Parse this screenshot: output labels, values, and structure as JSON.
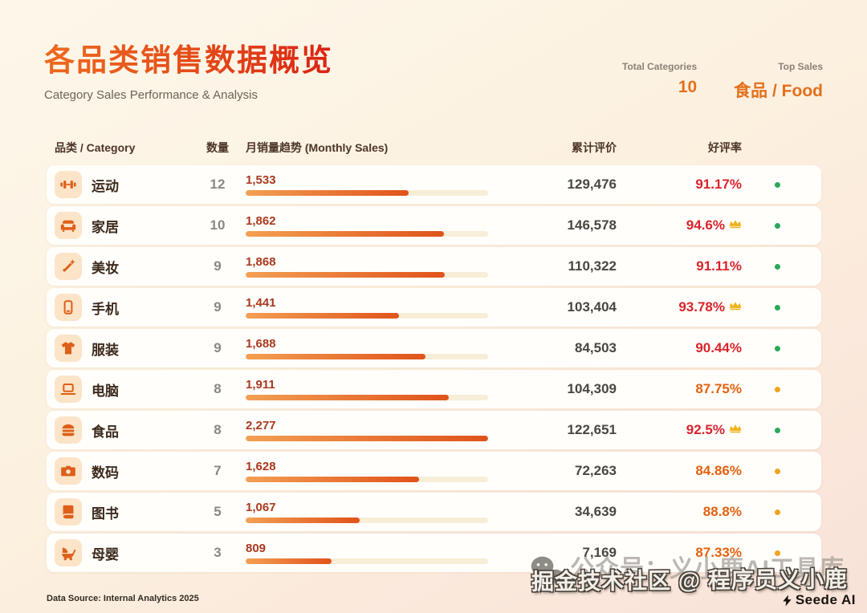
{
  "header": {
    "title": "各品类销售数据概览",
    "subtitle": "Category Sales Performance & Analysis",
    "stats": [
      {
        "label": "Total Categories",
        "value": "10"
      },
      {
        "label": "Top Sales",
        "value": "食品 / Food"
      }
    ]
  },
  "table": {
    "columns": {
      "category": "品类 / Category",
      "count": "数量",
      "trend": "月销量趋势 (Monthly Sales)",
      "reviews": "累计评价",
      "rating": "好评率"
    },
    "rows": [
      {
        "icon": "dumbbell-icon",
        "name": "运动",
        "count": "12",
        "sales": "1,533",
        "bar_pct": 67.3,
        "reviews": "129,476",
        "rating": "91.17%",
        "crown": false,
        "rating_color": "#d8232b",
        "status": "good",
        "status_color": "#2aa85a"
      },
      {
        "icon": "sofa-icon",
        "name": "家居",
        "count": "10",
        "sales": "1,862",
        "bar_pct": 81.8,
        "reviews": "146,578",
        "rating": "94.6%",
        "crown": true,
        "rating_color": "#d8232b",
        "status": "good",
        "status_color": "#2aa85a"
      },
      {
        "icon": "magic-wand-icon",
        "name": "美妆",
        "count": "9",
        "sales": "1,868",
        "bar_pct": 82.0,
        "reviews": "110,322",
        "rating": "91.11%",
        "crown": false,
        "rating_color": "#d8232b",
        "status": "good",
        "status_color": "#2aa85a"
      },
      {
        "icon": "smartphone-icon",
        "name": "手机",
        "count": "9",
        "sales": "1,441",
        "bar_pct": 63.3,
        "reviews": "103,404",
        "rating": "93.78%",
        "crown": true,
        "rating_color": "#d8232b",
        "status": "good",
        "status_color": "#2aa85a"
      },
      {
        "icon": "tshirt-icon",
        "name": "服装",
        "count": "9",
        "sales": "1,688",
        "bar_pct": 74.1,
        "reviews": "84,503",
        "rating": "90.44%",
        "crown": false,
        "rating_color": "#d8232b",
        "status": "good",
        "status_color": "#2aa85a"
      },
      {
        "icon": "laptop-icon",
        "name": "电脑",
        "count": "8",
        "sales": "1,911",
        "bar_pct": 83.9,
        "reviews": "104,309",
        "rating": "87.75%",
        "crown": false,
        "rating_color": "#e2620f",
        "status": "medium",
        "status_color": "#f2a31c"
      },
      {
        "icon": "burger-icon",
        "name": "食品",
        "count": "8",
        "sales": "2,277",
        "bar_pct": 100,
        "reviews": "122,651",
        "rating": "92.5%",
        "crown": true,
        "rating_color": "#d8232b",
        "status": "good",
        "status_color": "#2aa85a"
      },
      {
        "icon": "camera-icon",
        "name": "数码",
        "count": "7",
        "sales": "1,628",
        "bar_pct": 71.5,
        "reviews": "72,263",
        "rating": "84.86%",
        "crown": false,
        "rating_color": "#e2620f",
        "status": "medium",
        "status_color": "#f2a31c"
      },
      {
        "icon": "book-icon",
        "name": "图书",
        "count": "5",
        "sales": "1,067",
        "bar_pct": 46.9,
        "reviews": "34,639",
        "rating": "88.8%",
        "crown": false,
        "rating_color": "#e2620f",
        "status": "medium",
        "status_color": "#f2a31c"
      },
      {
        "icon": "stroller-icon",
        "name": "母婴",
        "count": "3",
        "sales": "809",
        "bar_pct": 35.5,
        "reviews": "7,169",
        "rating": "87.33%",
        "crown": false,
        "rating_color": "#e2620f",
        "status": "medium",
        "status_color": "#f2a31c"
      }
    ]
  },
  "footer": {
    "source": "Data Source: Internal Analytics 2025"
  },
  "watermark": {
    "back_text": "公众号：义小鹿AI工具库",
    "front_text": "掘金技术社区 @ 程序员义小鹿",
    "logo_text": "Seede AI"
  },
  "colors": {
    "accent_orange": "#e4701c",
    "bar_gradient_start": "#f3a053",
    "bar_gradient_end": "#e0531a",
    "rating_high": "#d8232b",
    "rating_low": "#e2620f",
    "dot_green": "#2aa85a",
    "dot_orange": "#f2a31c",
    "crown_gold": "#f0b31a"
  },
  "chart_data": {
    "type": "bar",
    "title": "各品类销售数据概览 (Category Sales Performance & Analysis)",
    "categories": [
      "运动",
      "家居",
      "美妆",
      "手机",
      "服装",
      "电脑",
      "食品",
      "数码",
      "图书",
      "母婴"
    ],
    "series": [
      {
        "name": "数量 (count)",
        "values": [
          12,
          10,
          9,
          9,
          9,
          8,
          8,
          7,
          5,
          3
        ]
      },
      {
        "name": "月销量 (Monthly Sales)",
        "values": [
          1533,
          1862,
          1868,
          1441,
          1688,
          1911,
          2277,
          1628,
          1067,
          809
        ]
      },
      {
        "name": "累计评价 (reviews)",
        "values": [
          129476,
          146578,
          110322,
          103404,
          84503,
          104309,
          122651,
          72263,
          34639,
          7169
        ]
      },
      {
        "name": "好评率 % (positive rate)",
        "values": [
          91.17,
          94.6,
          91.11,
          93.78,
          90.44,
          87.75,
          92.5,
          84.86,
          88.8,
          87.33
        ]
      }
    ],
    "xlabel": "",
    "ylabel": "Monthly Sales",
    "ylim": [
      0,
      2277
    ],
    "legend_position": "none",
    "grid": false,
    "annotations": [
      "crown on 家居 94.6%",
      "crown on 手机 93.78%",
      "crown on 食品 92.5%",
      "Total Categories: 10",
      "Top Sales: 食品 / Food"
    ]
  }
}
